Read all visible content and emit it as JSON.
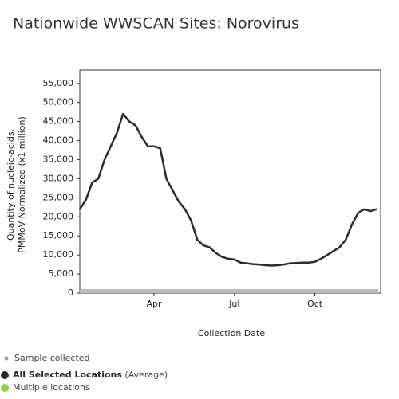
{
  "chart_data": {
    "type": "line",
    "title": "Nationwide WWSCAN Sites: Norovirus",
    "xlabel": "Collection Date",
    "ylabel": [
      "Quantity of nucleic-acids,",
      "PMMoV Normalized (x1 million)"
    ],
    "categories": [
      null,
      null,
      null,
      null,
      null,
      null,
      null,
      null,
      null,
      null,
      null,
      null,
      "Apr",
      null,
      null,
      null,
      null,
      null,
      null,
      null,
      null,
      null,
      null,
      null,
      null,
      "Jul",
      null,
      null,
      null,
      null,
      null,
      null,
      null,
      null,
      null,
      null,
      null,
      null,
      "Oct",
      null,
      null,
      null,
      null,
      null,
      null,
      null,
      null,
      null,
      null
    ],
    "series": [
      {
        "name": "All Selected Locations",
        "color": "#2b2b2b",
        "values": [
          22000,
          24500,
          29000,
          30000,
          35000,
          38500,
          42000,
          47000,
          45000,
          44000,
          41000,
          38500,
          38500,
          38000,
          30000,
          27000,
          24000,
          22000,
          19000,
          14000,
          12500,
          12000,
          10500,
          9500,
          9000,
          8800,
          8000,
          7800,
          7600,
          7500,
          7300,
          7200,
          7300,
          7500,
          7800,
          7900,
          8000,
          8000,
          8200,
          9000,
          10000,
          11000,
          12000,
          14000,
          18000,
          21000,
          22000,
          21500,
          22000
        ]
      }
    ],
    "legend_note": "(Average)",
    "legend_extra": [
      "Sample collected",
      "Multiple locations"
    ],
    "ylim": [
      0,
      58500
    ],
    "yticks": [
      0,
      {
        "value": 5000,
        "label": "5,000"
      },
      {
        "value": 10000,
        "label": "10,000"
      },
      {
        "value": 15000,
        "label": "15,000"
      },
      {
        "value": 20000,
        "label": "20,000"
      },
      {
        "value": 25000,
        "label": "25,000"
      },
      {
        "value": 30000,
        "label": "30,000"
      },
      {
        "value": 35000,
        "label": "35,000"
      },
      {
        "value": 40000,
        "label": "40,000"
      },
      {
        "value": 45000,
        "label": "45,000"
      },
      {
        "value": 50000,
        "label": "50,000"
      },
      {
        "value": 55000,
        "label": "55,000"
      }
    ]
  }
}
